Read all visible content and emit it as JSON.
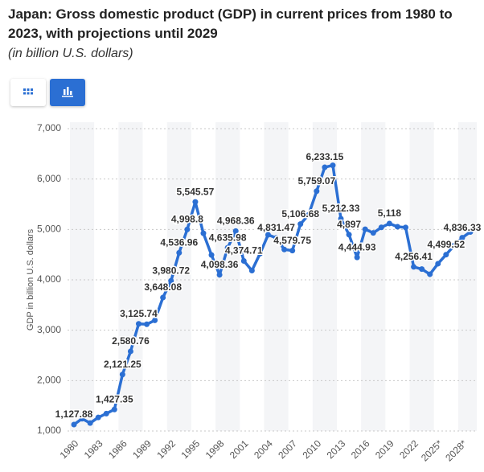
{
  "chart_data": {
    "type": "line",
    "title": "Japan: Gross domestic product (GDP) in current prices from 1980 to 2023, with projections until 2029",
    "subtitle": "(in billion U.S. dollars)",
    "y_label": "GDP in billion U.S. dollars",
    "categories": [
      "1980",
      null,
      null,
      "1983",
      null,
      null,
      "1986",
      null,
      null,
      "1989",
      null,
      null,
      "1992",
      null,
      null,
      "1995",
      null,
      null,
      "1998",
      null,
      null,
      "2001",
      null,
      null,
      "2004",
      null,
      null,
      "2007",
      null,
      null,
      "2010",
      null,
      null,
      "2013",
      null,
      null,
      "2016",
      null,
      null,
      "2019",
      null,
      null,
      "2022",
      null,
      null,
      "2025*",
      null,
      null,
      "2028*",
      null
    ],
    "series": [
      {
        "name": "GDP",
        "color": "#2b6fd3",
        "values": [
          1127.88,
          1243.8,
          1157.6,
          1268.6,
          1345.2,
          1427.35,
          2121.25,
          2580.76,
          3125.74,
          3117.8,
          3196.6,
          3648.08,
          3980.72,
          4536.96,
          4998.8,
          5545.57,
          4923.4,
          4492.4,
          4098.36,
          4635.98,
          4968.36,
          4374.71,
          4182.8,
          4519.6,
          4893.1,
          4831.47,
          4601.7,
          4579.75,
          5106.68,
          5289.5,
          5759.07,
          6233.15,
          6272.4,
          5212.33,
          4897,
          4444.93,
          5003.7,
          4930.8,
          5040.9,
          5118,
          5054.1,
          5039.1,
          4256.41,
          4212.9,
          4110.5,
          4320,
          4499.52,
          4680,
          4836.33,
          4950
        ],
        "value_labels": [
          "1,127.88",
          null,
          null,
          null,
          null,
          "1,427.35",
          "2,121.25",
          "2,580.76",
          "3,125.74",
          null,
          null,
          "3,648.08",
          "3,980.72",
          "4,536.96",
          "4,998.8",
          "5,545.57",
          null,
          null,
          "4,098.36",
          "4,635.98",
          "4,968.36",
          "4,374.71",
          null,
          null,
          null,
          "4,831.47",
          null,
          "4,579.75",
          "5,106.68",
          null,
          "5,759.07",
          "6,233.15",
          null,
          "5,212.33",
          "4,897",
          "4,444.93",
          null,
          null,
          null,
          "5,118",
          null,
          null,
          "4,256.41",
          null,
          null,
          null,
          "4,499.52",
          null,
          "4,836.33",
          null
        ]
      }
    ],
    "ylim": [
      1000,
      7000
    ],
    "yticks": [
      {
        "value": 1000,
        "label": "1,000"
      },
      {
        "value": 2000,
        "label": "2,000"
      },
      {
        "value": 3000,
        "label": "3,000"
      },
      {
        "value": 4000,
        "label": "4,000"
      },
      {
        "value": 5000,
        "label": "5,000"
      },
      {
        "value": 6000,
        "label": "6,000"
      },
      {
        "value": 7000,
        "label": "7,000"
      }
    ],
    "grid": true
  }
}
